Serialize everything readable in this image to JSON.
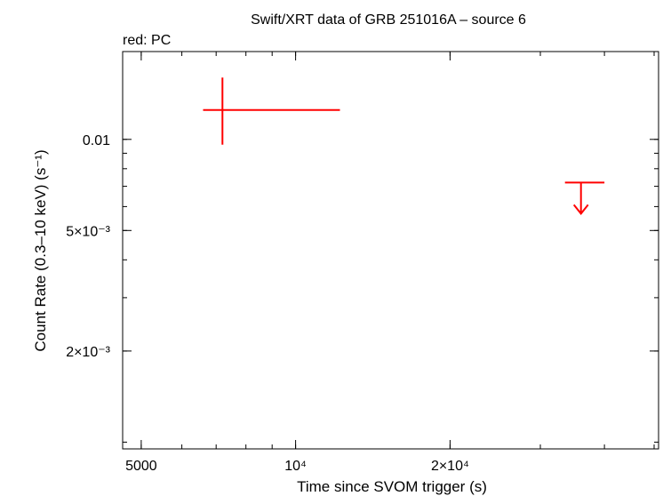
{
  "chart_data": {
    "type": "scatter",
    "title": "Swift/XRT data of GRB 251016A – source 6",
    "subtitle": "red: PC",
    "xlabel": "Time since SVOM trigger (s)",
    "ylabel": "Count Rate (0.3–10 keV) (s⁻¹)",
    "x_scale": "log",
    "y_scale": "log",
    "xlim": [
      4600,
      51000
    ],
    "ylim": [
      0.00095,
      0.0195
    ],
    "x_ticks": [
      {
        "value": 5000,
        "label": "5000"
      },
      {
        "value": 10000,
        "label": "10⁴"
      },
      {
        "value": 20000,
        "label": "2×10⁴"
      }
    ],
    "y_ticks": [
      {
        "value": 0.002,
        "label": "2×10⁻³"
      },
      {
        "value": 0.005,
        "label": "5×10⁻³"
      },
      {
        "value": 0.01,
        "label": "0.01"
      }
    ],
    "series": [
      {
        "color": "#ff0000",
        "points": [
          {
            "x": 7200,
            "x_low": 6600,
            "x_high": 12200,
            "y": 0.0125,
            "y_low": 0.0096,
            "y_high": 0.016
          }
        ],
        "upper_limits": [
          {
            "x": 36000,
            "x_low": 33500,
            "x_high": 40000,
            "y": 0.0072
          }
        ]
      }
    ]
  }
}
